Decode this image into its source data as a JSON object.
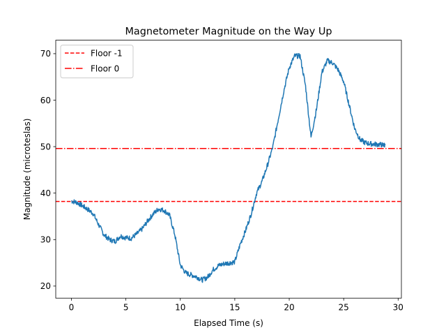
{
  "chart_data": {
    "type": "line",
    "title": "Magnetometer Magnitude on the Way Up",
    "xlabel": "Elapsed Time (s)",
    "ylabel": "Magnitude (microteslas)",
    "xlim": [
      -1.44,
      30.3
    ],
    "ylim": [
      17.4,
      72.9
    ],
    "xticks": [
      0,
      5,
      10,
      15,
      20,
      25,
      30
    ],
    "yticks": [
      20,
      30,
      40,
      50,
      60,
      70
    ],
    "grid": false,
    "legend_position": "upper left",
    "series": [
      {
        "color": "#1f77b4",
        "x": [
          0,
          0.5,
          1,
          1.5,
          2,
          2.5,
          3,
          3.5,
          4,
          4.5,
          5,
          5.5,
          6,
          6.5,
          7,
          7.5,
          8,
          8.5,
          9,
          9.5,
          10,
          10.5,
          11,
          11.5,
          12,
          12.5,
          13,
          13.5,
          14,
          14.5,
          15,
          15.5,
          16,
          16.5,
          17,
          17.5,
          18,
          18.5,
          19,
          19.5,
          20,
          20.5,
          21,
          21.5,
          22,
          22.5,
          23,
          23.5,
          24,
          24.5,
          25,
          25.5,
          26,
          26.5,
          27,
          27.5,
          28,
          28.5,
          28.8
        ],
        "y": [
          38.3,
          38.0,
          37.3,
          36.5,
          35.6,
          33.2,
          31.0,
          30.0,
          29.6,
          30.8,
          30.4,
          30.3,
          31.2,
          32.3,
          34.0,
          35.5,
          36.6,
          36.3,
          35.3,
          31.0,
          24.5,
          22.8,
          22.4,
          22.0,
          21.3,
          21.9,
          23.5,
          24.4,
          24.8,
          25.0,
          25.2,
          29.0,
          32.0,
          35.5,
          40.0,
          42.5,
          46.0,
          50.0,
          56.0,
          62.0,
          67.0,
          69.5,
          69.5,
          63.0,
          52.0,
          58.0,
          66.0,
          68.5,
          68.0,
          66.5,
          64.0,
          59.0,
          54.0,
          51.5,
          50.8,
          50.6,
          50.5,
          50.4,
          50.3
        ]
      },
      {
        "name": "Floor -1",
        "color": "#ff0000",
        "style": "dashed",
        "y": 38.2
      },
      {
        "name": "Floor 0",
        "color": "#ff0000",
        "style": "dashdot",
        "y": 49.6
      }
    ]
  }
}
